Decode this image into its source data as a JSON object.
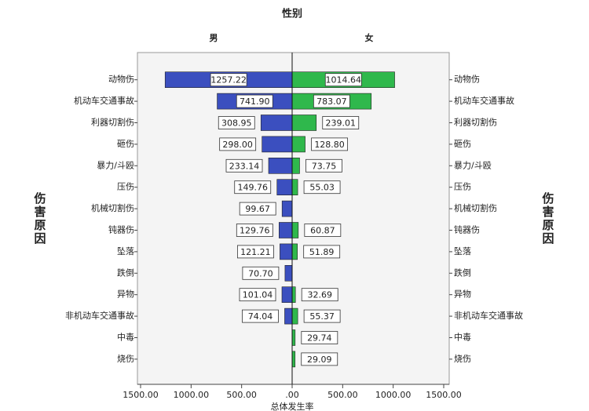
{
  "chart_data": {
    "type": "butterfly",
    "title": "性别",
    "y_label": "伤害原因",
    "x_label": "总体发生率",
    "categories": [
      "动物伤",
      "机动车交通事故",
      "利器切割伤",
      "砸伤",
      "暴力/斗殴",
      "压伤",
      "机械切割伤",
      "钝器伤",
      "坠落",
      "跌倒",
      "异物",
      "非机动车交通事故",
      "中毒",
      "烧伤"
    ],
    "series": [
      {
        "name": "男",
        "color": "#3b4fbf",
        "side": "left",
        "values": [
          1257.22,
          741.9,
          308.95,
          298,
          233.14,
          149.76,
          99.67,
          129.76,
          121.21,
          70.7,
          101.04,
          74.04,
          null,
          null
        ],
        "value_labels": [
          "1257.22",
          "741.90",
          "308.95",
          "298.00",
          "233.14",
          "149.76",
          "99.67",
          "129.76",
          "121.21",
          "70.70",
          "101.04",
          "74.04",
          null,
          null
        ]
      },
      {
        "name": "女",
        "color": "#2fb84c",
        "side": "right",
        "values": [
          1014.64,
          783.07,
          239.01,
          128.8,
          73.75,
          55.03,
          null,
          60.87,
          51.89,
          null,
          32.69,
          55.37,
          29.74,
          29.09
        ],
        "value_labels": [
          "1014.64",
          "783.07",
          "239.01",
          "128.80",
          "73.75",
          "55.03",
          null,
          "60.87",
          "51.89",
          null,
          "32.69",
          "55.37",
          "29.74",
          "29.09"
        ]
      }
    ],
    "xlim": [
      0,
      1500
    ],
    "xticks_left": [
      {
        "value": 1500,
        "label": "1500.00"
      },
      {
        "value": 1000,
        "label": "1000.00"
      },
      {
        "value": 500,
        "label": "500.00"
      },
      {
        "value": 0,
        "label": ".00"
      }
    ],
    "xticks_right": [
      {
        "value": 500,
        "label": "500.00"
      },
      {
        "value": 1000,
        "label": "1000.00"
      },
      {
        "value": 1500,
        "label": "1500.00"
      }
    ]
  }
}
